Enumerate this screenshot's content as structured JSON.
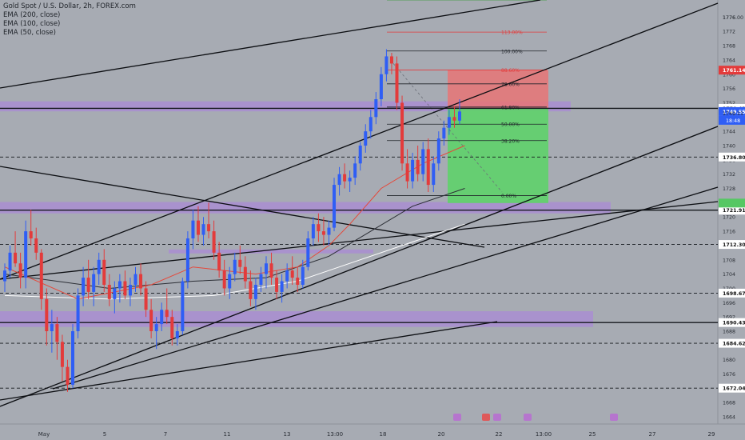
{
  "header": {
    "symbol": "Gold Spot / U.S. Dollar, 2h, FOREX.com",
    "indicators": [
      "EMA (200, close)",
      "EMA (100, close)",
      "EMA (50, close)"
    ]
  },
  "colors": {
    "background": "#a7abb3",
    "bull": "#2f5ef5",
    "bear": "#e33b3b",
    "zone": "#a98ad6",
    "stop": "#e87476",
    "target": "#5fd16a",
    "ema50": "#e5483a",
    "ema100": "#2c2f36",
    "ema200": "#ffffff"
  },
  "chart_data": {
    "type": "candlestick",
    "y_axis": {
      "ticks": [
        1664,
        1668,
        1672,
        1676,
        1680,
        1684,
        1688,
        1692,
        1696,
        1700,
        1704,
        1708,
        1712,
        1716,
        1720,
        1724,
        1728,
        1732,
        1736,
        1740,
        1744,
        1748,
        1752,
        1756,
        1760,
        1764,
        1768,
        1772,
        1776
      ],
      "range": [
        1662,
        1779
      ]
    },
    "x_axis": {
      "ticks": [
        "May",
        "5",
        "7",
        "11",
        "13",
        "13:00",
        "18",
        "20",
        "22",
        "13:00",
        "25",
        "27",
        "29"
      ]
    },
    "price_labels": [
      {
        "value": "1776.00",
        "style": "tick"
      },
      {
        "value": "1761.14",
        "style": "red"
      },
      {
        "value": "1750.43",
        "style": "white"
      },
      {
        "value": "1749.55",
        "style": "blue",
        "sub": "18:48"
      },
      {
        "value": "1749.11",
        "style": "tick"
      },
      {
        "value": "1736.80",
        "style": "white"
      },
      {
        "value": "1721.91",
        "style": "white"
      },
      {
        "value": "1712.30",
        "style": "white"
      },
      {
        "value": "1698.67",
        "style": "white"
      },
      {
        "value": "1690.43",
        "style": "white"
      },
      {
        "value": "1684.62",
        "style": "white"
      },
      {
        "value": "1672.04",
        "style": "white"
      }
    ],
    "fibonacci": [
      {
        "label": "113.00%",
        "price": 1771.8,
        "color": "#e33b3b"
      },
      {
        "label": "100.00%",
        "price": 1766.5,
        "color": "#1f2329"
      },
      {
        "label": "88.60%",
        "price": 1761.2,
        "color": "#e33b3b"
      },
      {
        "label": "78.60%",
        "price": 1757.3,
        "color": "#1f2329"
      },
      {
        "label": "61.80%",
        "price": 1750.8,
        "color": "#1f2329"
      },
      {
        "label": "50.00%",
        "price": 1746.0,
        "color": "#1f2329"
      },
      {
        "label": "38.20%",
        "price": 1741.4,
        "color": "#1f2329"
      },
      {
        "label": "0.00%",
        "price": 1726.0,
        "color": "#1f2329"
      }
    ],
    "horizontal_levels": [
      1750.43,
      1736.8,
      1721.91,
      1712.3,
      1698.67,
      1690.43,
      1684.62,
      1672.04
    ],
    "zones": [
      {
        "from": 1749.6,
        "to": 1752.4
      },
      {
        "from": 1721.0,
        "to": 1724.2
      },
      {
        "from": 1709.8,
        "to": 1710.9
      },
      {
        "from": 1689.2,
        "to": 1693.6
      }
    ],
    "position": {
      "entry": 1750.43,
      "stop": 1761.14,
      "target": 1723.9
    },
    "candles": [
      [
        1702,
        1707,
        1699,
        1705
      ],
      [
        1705,
        1712,
        1703,
        1710
      ],
      [
        1710,
        1716,
        1706,
        1707
      ],
      [
        1707,
        1710,
        1700,
        1703
      ],
      [
        1703,
        1719,
        1700,
        1716
      ],
      [
        1716,
        1722,
        1712,
        1714
      ],
      [
        1714,
        1717,
        1708,
        1710
      ],
      [
        1710,
        1711,
        1694,
        1697
      ],
      [
        1697,
        1700,
        1684,
        1688
      ],
      [
        1688,
        1694,
        1682,
        1690
      ],
      [
        1690,
        1692,
        1680,
        1685
      ],
      [
        1685,
        1687,
        1674,
        1678
      ],
      [
        1678,
        1680,
        1671,
        1673
      ],
      [
        1673,
        1690,
        1672,
        1688
      ],
      [
        1688,
        1700,
        1686,
        1698
      ],
      [
        1698,
        1706,
        1695,
        1703
      ],
      [
        1703,
        1708,
        1697,
        1699
      ],
      [
        1699,
        1706,
        1695,
        1704
      ],
      [
        1704,
        1710,
        1701,
        1708
      ],
      [
        1708,
        1711,
        1699,
        1701
      ],
      [
        1701,
        1704,
        1695,
        1697
      ],
      [
        1697,
        1702,
        1693,
        1700
      ],
      [
        1700,
        1704,
        1696,
        1702
      ],
      [
        1702,
        1705,
        1697,
        1698
      ],
      [
        1698,
        1703,
        1695,
        1701
      ],
      [
        1701,
        1706,
        1699,
        1704
      ],
      [
        1704,
        1707,
        1698,
        1700
      ],
      [
        1700,
        1702,
        1692,
        1694
      ],
      [
        1694,
        1697,
        1686,
        1688
      ],
      [
        1688,
        1692,
        1683,
        1690
      ],
      [
        1690,
        1696,
        1688,
        1694
      ],
      [
        1694,
        1700,
        1690,
        1692
      ],
      [
        1692,
        1694,
        1684,
        1686
      ],
      [
        1686,
        1690,
        1684,
        1688
      ],
      [
        1688,
        1703,
        1687,
        1702
      ],
      [
        1702,
        1716,
        1700,
        1714
      ],
      [
        1714,
        1722,
        1711,
        1719
      ],
      [
        1719,
        1723,
        1713,
        1715
      ],
      [
        1715,
        1720,
        1712,
        1718
      ],
      [
        1718,
        1724,
        1714,
        1716
      ],
      [
        1716,
        1719,
        1708,
        1710
      ],
      [
        1710,
        1713,
        1703,
        1705
      ],
      [
        1705,
        1708,
        1698,
        1700
      ],
      [
        1700,
        1706,
        1697,
        1704
      ],
      [
        1704,
        1710,
        1702,
        1708
      ],
      [
        1708,
        1712,
        1704,
        1706
      ],
      [
        1706,
        1709,
        1700,
        1702
      ],
      [
        1702,
        1705,
        1695,
        1697
      ],
      [
        1697,
        1703,
        1694,
        1701
      ],
      [
        1701,
        1706,
        1699,
        1704
      ],
      [
        1704,
        1709,
        1700,
        1707
      ],
      [
        1707,
        1710,
        1701,
        1703
      ],
      [
        1703,
        1705,
        1697,
        1699
      ],
      [
        1699,
        1704,
        1696,
        1702
      ],
      [
        1702,
        1707,
        1700,
        1705
      ],
      [
        1705,
        1709,
        1701,
        1703
      ],
      [
        1703,
        1706,
        1699,
        1701
      ],
      [
        1701,
        1708,
        1700,
        1706
      ],
      [
        1706,
        1716,
        1705,
        1714
      ],
      [
        1714,
        1720,
        1712,
        1718
      ],
      [
        1718,
        1721,
        1713,
        1716
      ],
      [
        1716,
        1720,
        1712,
        1715
      ],
      [
        1715,
        1719,
        1712,
        1717
      ],
      [
        1717,
        1731,
        1716,
        1729
      ],
      [
        1729,
        1734,
        1726,
        1732
      ],
      [
        1732,
        1735,
        1728,
        1730
      ],
      [
        1730,
        1733,
        1727,
        1731
      ],
      [
        1731,
        1737,
        1729,
        1735
      ],
      [
        1735,
        1741,
        1733,
        1740
      ],
      [
        1740,
        1746,
        1738,
        1744
      ],
      [
        1744,
        1750,
        1742,
        1748
      ],
      [
        1748,
        1755,
        1746,
        1753
      ],
      [
        1753,
        1762,
        1751,
        1760
      ],
      [
        1760,
        1767,
        1758,
        1765
      ],
      [
        1765,
        1766,
        1760,
        1763
      ],
      [
        1763,
        1765,
        1750,
        1752
      ],
      [
        1752,
        1754,
        1733,
        1735
      ],
      [
        1735,
        1739,
        1728,
        1730
      ],
      [
        1730,
        1738,
        1728,
        1736
      ],
      [
        1736,
        1740,
        1730,
        1732
      ],
      [
        1732,
        1741,
        1730,
        1739
      ],
      [
        1739,
        1742,
        1727,
        1729
      ],
      [
        1729,
        1737,
        1727,
        1735
      ],
      [
        1735,
        1744,
        1733,
        1742
      ],
      [
        1742,
        1747,
        1740,
        1745
      ],
      [
        1745,
        1750,
        1743,
        1748
      ],
      [
        1748,
        1751,
        1745,
        1747
      ],
      [
        1747,
        1753,
        1746,
        1749.55
      ]
    ],
    "ema50": [
      [
        0,
        1706
      ],
      [
        14,
        1697
      ],
      [
        28,
        1701
      ],
      [
        36,
        1706
      ],
      [
        48,
        1704
      ],
      [
        56,
        1706
      ],
      [
        62,
        1712
      ],
      [
        66,
        1718
      ],
      [
        72,
        1728
      ],
      [
        80,
        1735
      ],
      [
        88,
        1740
      ]
    ],
    "ema100": [
      [
        0,
        1704
      ],
      [
        20,
        1700
      ],
      [
        36,
        1702
      ],
      [
        50,
        1703
      ],
      [
        62,
        1709
      ],
      [
        70,
        1716
      ],
      [
        78,
        1723
      ],
      [
        88,
        1728
      ]
    ],
    "ema200": [
      [
        0,
        1698
      ],
      [
        20,
        1697
      ],
      [
        40,
        1698
      ],
      [
        56,
        1702
      ],
      [
        66,
        1707
      ],
      [
        76,
        1712
      ],
      [
        88,
        1718
      ]
    ]
  }
}
